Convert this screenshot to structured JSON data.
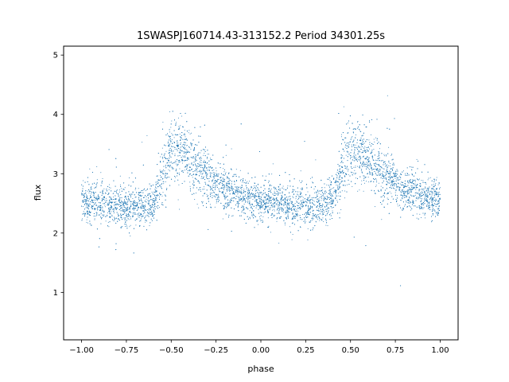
{
  "chart_data": {
    "type": "scatter",
    "title": "1SWASPJ160714.43-313152.2 Period 34301.25s",
    "xlabel": "phase",
    "ylabel": "flux",
    "xlim": [
      -1.1,
      1.1
    ],
    "ylim": [
      0.2,
      5.15
    ],
    "xticks": [
      "−1.00",
      "−0.75",
      "−0.50",
      "−0.25",
      "0.00",
      "0.25",
      "0.50",
      "0.75",
      "1.00"
    ],
    "xtick_values": [
      -1.0,
      -0.75,
      -0.5,
      -0.25,
      0.0,
      0.25,
      0.5,
      0.75,
      1.0
    ],
    "yticks": [
      "1",
      "2",
      "3",
      "4",
      "5"
    ],
    "ytick_values": [
      1,
      2,
      3,
      4,
      5
    ],
    "grid": false,
    "legend": "none",
    "marker_color": "#1f77b4",
    "series": [
      {
        "x": [
          -1.0,
          -0.9,
          -0.8,
          -0.7,
          -0.6,
          -0.55,
          -0.5,
          -0.45,
          -0.4,
          -0.3,
          -0.2,
          -0.1,
          0.0,
          0.1,
          0.2,
          0.3,
          0.4,
          0.45,
          0.5,
          0.55,
          0.6,
          0.7,
          0.8,
          0.9,
          1.0
        ],
        "y": [
          2.55,
          2.5,
          2.45,
          2.45,
          2.5,
          3.0,
          3.4,
          3.4,
          3.25,
          2.95,
          2.75,
          2.6,
          2.55,
          2.5,
          2.45,
          2.45,
          2.55,
          3.05,
          3.4,
          3.4,
          3.25,
          2.95,
          2.75,
          2.6,
          2.55
        ]
      }
    ]
  }
}
